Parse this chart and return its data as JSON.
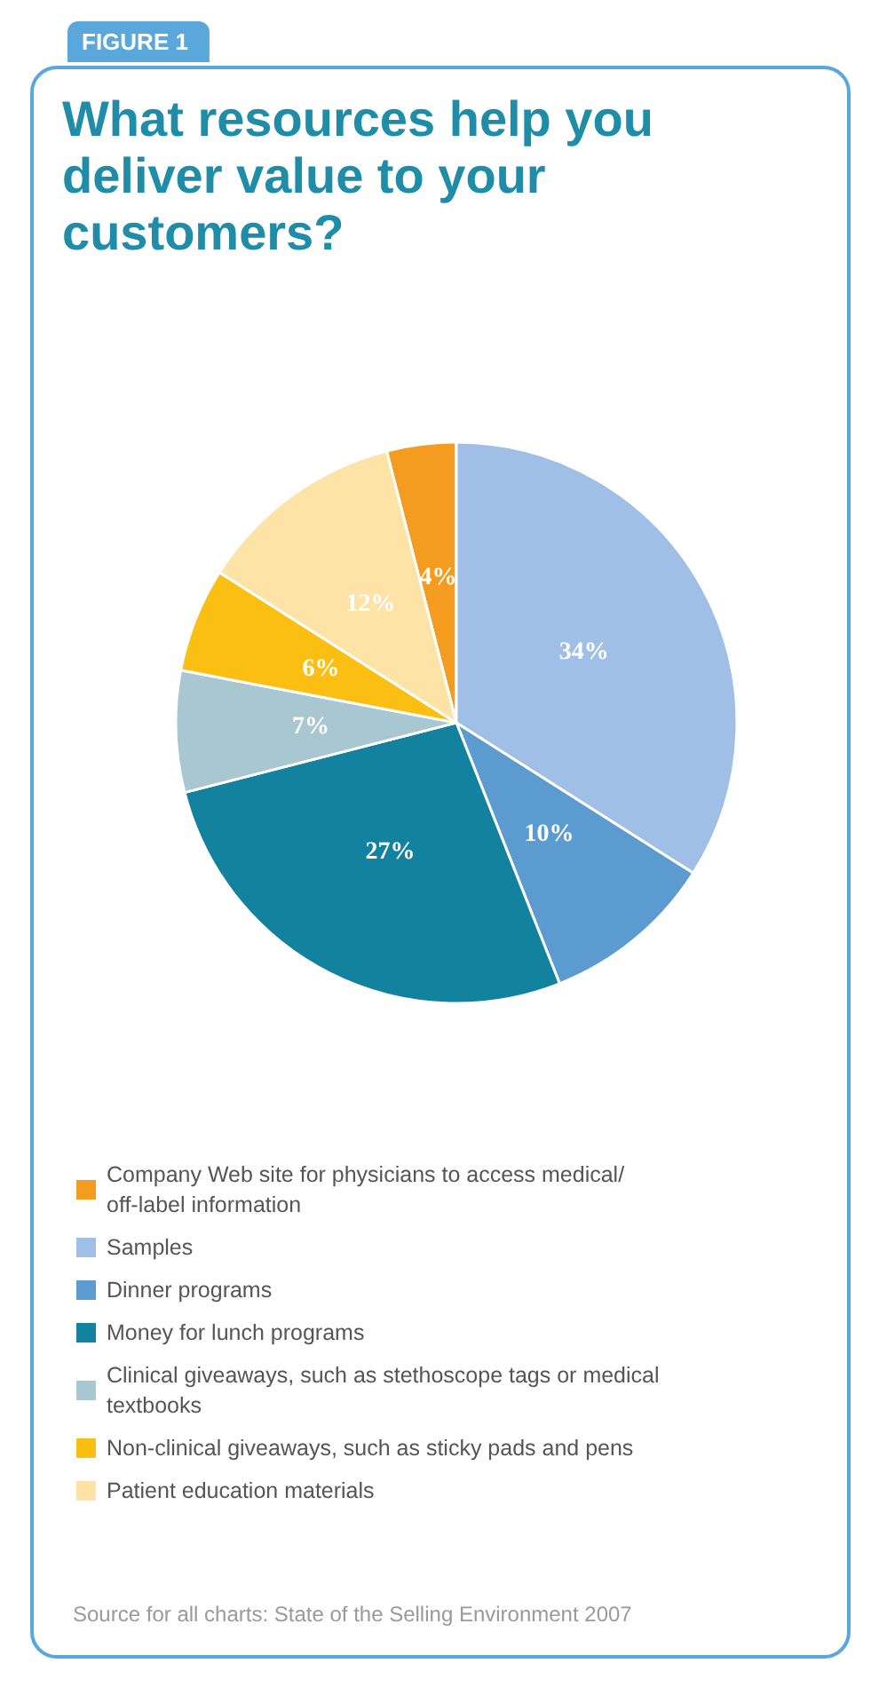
{
  "chart_data": {
    "type": "pie",
    "title": "What resources help you deliver value to your customers?",
    "categories": [
      "Company Web site for physicians to access medical/off-label information",
      "Samples",
      "Dinner programs",
      "Money for lunch programs",
      "Clinical giveaways, such as stethoscope tags or medical textbooks",
      "Non-clinical giveaways, such as sticky pads and pens",
      "Patient education materials"
    ],
    "values": [
      4,
      34,
      10,
      27,
      7,
      6,
      12
    ],
    "value_labels": [
      "4%",
      "34%",
      "10%",
      "27%",
      "7%",
      "6%",
      "12%"
    ],
    "colors": [
      "#f39c1f",
      "#9fbfe6",
      "#5b9bd0",
      "#13829f",
      "#a9c7d1",
      "#fbbf13",
      "#fde3a6"
    ],
    "legend": "bottom",
    "annotations": [
      "FIGURE 1",
      "Source for all charts: State of the Selling Environment 2007"
    ]
  }
}
